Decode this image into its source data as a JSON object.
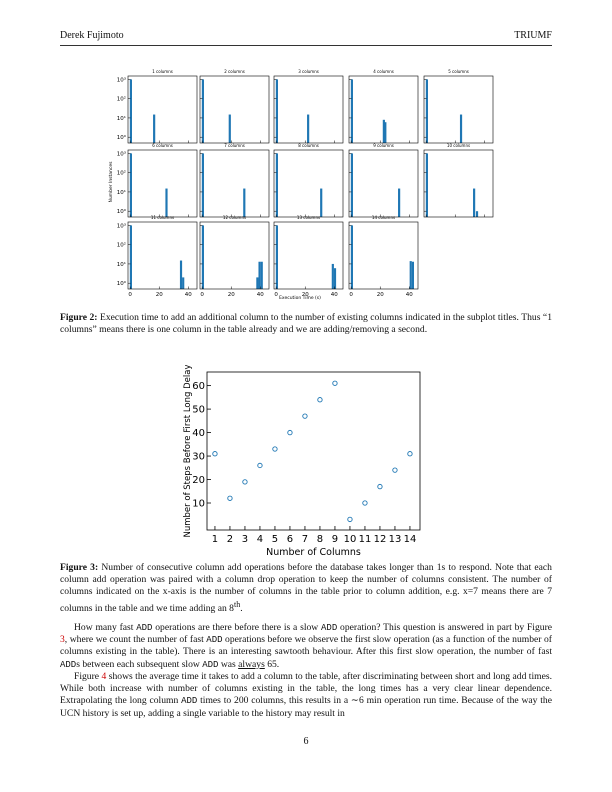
{
  "header": {
    "author": "Derek Fujimoto",
    "affiliation": "TRIUMF"
  },
  "figure2": {
    "chart_data": {
      "type": "bar",
      "log_y": true,
      "color": "#1f77b4",
      "xlim": [
        -1.5,
        46
      ],
      "ylim": [
        0.5,
        1500
      ],
      "xticks": [
        0,
        20,
        40
      ],
      "yticks": [
        {
          "value": 1,
          "label": "10⁰"
        },
        {
          "value": 10,
          "label": "10¹"
        },
        {
          "value": 100,
          "label": "10²"
        },
        {
          "value": 1000,
          "label": "10³"
        }
      ],
      "xlabel": "Execution Time (s)",
      "ylabel": "Number Instances",
      "subplots": [
        {
          "title": "1 columns",
          "x": [
            0.5,
            16.5
          ],
          "values": [
            1000,
            15
          ]
        },
        {
          "title": "2 columns",
          "x": [
            0.5,
            19
          ],
          "values": [
            1000,
            15
          ]
        },
        {
          "title": "3 columns",
          "x": [
            0.5,
            22
          ],
          "values": [
            1000,
            15
          ]
        },
        {
          "title": "4 columns",
          "x": [
            0.5,
            22.5,
            23.5
          ],
          "values": [
            1000,
            8,
            6
          ]
        },
        {
          "title": "5 columns",
          "x": [
            0.5,
            24
          ],
          "values": [
            1000,
            15
          ]
        },
        {
          "title": "6 columns",
          "x": [
            0.5,
            25
          ],
          "values": [
            1000,
            15
          ]
        },
        {
          "title": "7 columns",
          "x": [
            0.5,
            29
          ],
          "values": [
            1000,
            15
          ]
        },
        {
          "title": "8 columns",
          "x": [
            0.5,
            31
          ],
          "values": [
            1000,
            15
          ]
        },
        {
          "title": "9 columns",
          "x": [
            0.5,
            33
          ],
          "values": [
            1000,
            15
          ]
        },
        {
          "title": "10 columns",
          "x": [
            0.5,
            33,
            35
          ],
          "values": [
            1000,
            15,
            1
          ]
        },
        {
          "title": "11 columns",
          "x": [
            0.5,
            35,
            36.5
          ],
          "values": [
            1000,
            15,
            2
          ]
        },
        {
          "title": "12 columns",
          "x": [
            0.5,
            38,
            39.5,
            41
          ],
          "values": [
            1000,
            2,
            13,
            13
          ]
        },
        {
          "title": "13 columns",
          "x": [
            0.5,
            39,
            40.5
          ],
          "values": [
            1000,
            10,
            6
          ]
        },
        {
          "title": "14 columns",
          "x": [
            0.5,
            41,
            42.5
          ],
          "values": [
            1000,
            14,
            13
          ]
        }
      ]
    },
    "caption": {
      "label": "Figure 2:",
      "text": " Execution time to add an additional column to the number of existing columns indicated in the subplot titles. Thus “1 columns” means there is one column in the table already and we are adding/removing a second."
    }
  },
  "figure3": {
    "chart_data": {
      "type": "scatter",
      "color": "#1f77b4",
      "x": [
        1,
        2,
        3,
        4,
        5,
        6,
        7,
        8,
        9,
        10,
        11,
        12,
        13,
        14
      ],
      "values": [
        31,
        12,
        19,
        26,
        33,
        40,
        47,
        54,
        61,
        3,
        10,
        17,
        24,
        31
      ],
      "xlim": [
        0.47,
        14.67
      ],
      "ylim": [
        -1.5,
        65.8
      ],
      "xticks": [
        1,
        2,
        3,
        4,
        5,
        6,
        7,
        8,
        9,
        10,
        11,
        12,
        13,
        14
      ],
      "yticks": [
        10,
        20,
        30,
        40,
        50,
        60
      ],
      "xlabel": "Number of Columns",
      "ylabel": "Number of Steps Before First Long Delay"
    },
    "caption": {
      "label": "Figure 3:",
      "text": " Number of consecutive column add operations before the database takes longer than 1s to respond. Note that each column add operation was paired with a column drop operation to keep the number of columns consistent. The number of columns indicated on the x-axis is the number of columns in the table prior to column addition, e.g. x=7 means there are 7 columns in the table and we time adding an 8",
      "sup": "th",
      "end": "."
    }
  },
  "paragraphs": [
    [
      {
        "text": "How many fast "
      },
      {
        "text": "ADD",
        "style": "code"
      },
      {
        "text": " operations are there before there is a slow "
      },
      {
        "text": "ADD",
        "style": "code"
      },
      {
        "text": " operation? This question is answered in part by Figure "
      },
      {
        "text": "3",
        "style": "ref"
      },
      {
        "text": ", where we count the number of fast "
      },
      {
        "text": "ADD",
        "style": "code"
      },
      {
        "text": " operations before we observe the first slow operation (as a function of the number of columns existing in the table). There is an interesting sawtooth behaviour. After this first slow operation, the number of fast "
      },
      {
        "text": "ADD",
        "style": "code"
      },
      {
        "text": "s between each subsequent slow "
      },
      {
        "text": "ADD",
        "style": "code"
      },
      {
        "text": " was "
      },
      {
        "text": "always",
        "style": "underline"
      },
      {
        "text": " 65."
      }
    ],
    [
      {
        "text": "Figure "
      },
      {
        "text": "4",
        "style": "ref"
      },
      {
        "text": " shows the average time it takes to add a column to the table, after discriminating between short and long add times. While both increase with number of columns existing in the table, the long times has a very clear linear dependence. Extrapolating the long column "
      },
      {
        "text": "ADD",
        "style": "code"
      },
      {
        "text": " times to 200 columns, this results in a ∼6 min operation run time. Because of the way the UCN history is set up, adding a single variable to the history may result in"
      }
    ]
  ],
  "page_number": "6"
}
